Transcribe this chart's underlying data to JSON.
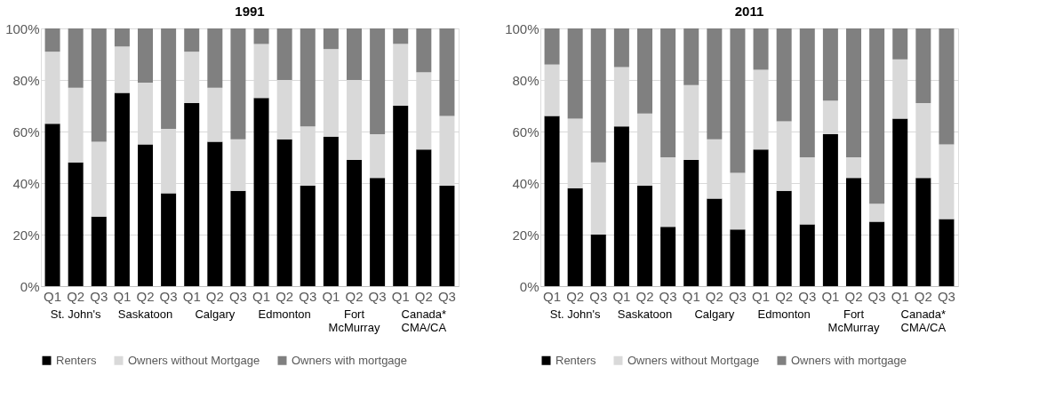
{
  "chart_data": [
    {
      "type": "bar",
      "title": "1991",
      "stacked": true,
      "grid": "y",
      "legend": "bottom",
      "categories": [
        "Q1",
        "Q2",
        "Q3",
        "Q1",
        "Q2",
        "Q3",
        "Q1",
        "Q2",
        "Q3",
        "Q1",
        "Q2",
        "Q3",
        "Q1",
        "Q2",
        "Q3",
        "Q1",
        "Q2",
        "Q3"
      ],
      "annotations": [
        "St. John's",
        "Saskatoon",
        "Calgary",
        "Edmonton",
        "Fort\nMcMurray",
        "Canada*\nCMA/CA"
      ],
      "ylim": [
        0,
        100
      ],
      "yticks": [
        {
          "value": 0,
          "label": "0%"
        },
        {
          "value": 20,
          "label": "20%"
        },
        {
          "value": 40,
          "label": "40%"
        },
        {
          "value": 60,
          "label": "60%"
        },
        {
          "value": 80,
          "label": "80%"
        },
        {
          "value": 100,
          "label": "100%"
        }
      ],
      "series": [
        {
          "name": "Renters",
          "color": "#000000",
          "values": [
            63,
            48,
            27,
            75,
            55,
            36,
            71,
            56,
            37,
            73,
            57,
            39,
            58,
            49,
            42,
            70,
            53,
            39
          ]
        },
        {
          "name": "Owners without Mortgage",
          "color": "#d9d9d9",
          "values": [
            28,
            29,
            29,
            18,
            24,
            25,
            20,
            21,
            20,
            21,
            23,
            23,
            34,
            31,
            17,
            24,
            30,
            27
          ]
        },
        {
          "name": "Owners with mortgage",
          "color": "#808080",
          "values": [
            9,
            23,
            44,
            7,
            21,
            39,
            9,
            23,
            43,
            6,
            20,
            38,
            8,
            20,
            41,
            6,
            17,
            34
          ]
        }
      ]
    },
    {
      "type": "bar",
      "title": "2011",
      "stacked": true,
      "grid": "y",
      "legend": "bottom",
      "categories": [
        "Q1",
        "Q2",
        "Q3",
        "Q1",
        "Q2",
        "Q3",
        "Q1",
        "Q2",
        "Q3",
        "Q1",
        "Q2",
        "Q3",
        "Q1",
        "Q2",
        "Q3",
        "Q1",
        "Q2",
        "Q3"
      ],
      "annotations": [
        "St. John's",
        "Saskatoon",
        "Calgary",
        "Edmonton",
        "Fort\nMcMurray",
        "Canada*\nCMA/CA"
      ],
      "ylim": [
        0,
        100
      ],
      "yticks": [
        {
          "value": 0,
          "label": "0%"
        },
        {
          "value": 20,
          "label": "20%"
        },
        {
          "value": 40,
          "label": "40%"
        },
        {
          "value": 60,
          "label": "60%"
        },
        {
          "value": 80,
          "label": "80%"
        },
        {
          "value": 100,
          "label": "100%"
        }
      ],
      "series": [
        {
          "name": "Renters",
          "color": "#000000",
          "values": [
            66,
            38,
            20,
            62,
            39,
            23,
            49,
            34,
            22,
            53,
            37,
            24,
            59,
            42,
            25,
            65,
            42,
            26
          ]
        },
        {
          "name": "Owners without Mortgage",
          "color": "#d9d9d9",
          "values": [
            20,
            27,
            28,
            23,
            28,
            27,
            29,
            23,
            22,
            31,
            27,
            26,
            13,
            8,
            7,
            23,
            29,
            29
          ]
        },
        {
          "name": "Owners with mortgage",
          "color": "#808080",
          "values": [
            14,
            35,
            52,
            15,
            33,
            50,
            22,
            43,
            56,
            16,
            36,
            50,
            28,
            50,
            68,
            12,
            29,
            45
          ]
        }
      ]
    }
  ]
}
